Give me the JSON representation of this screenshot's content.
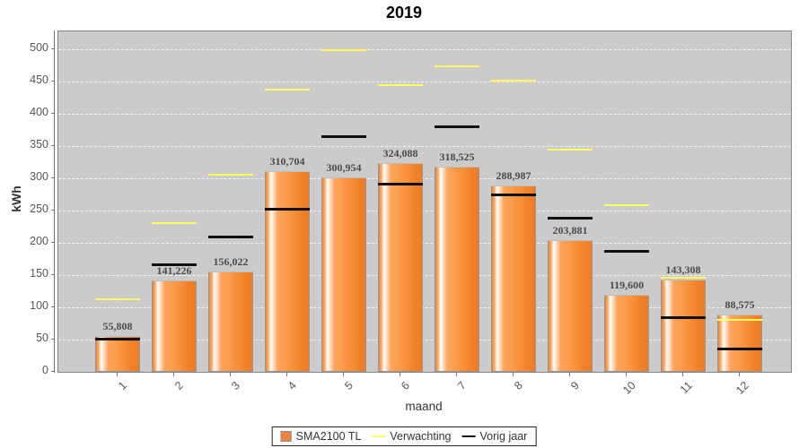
{
  "title": "2019",
  "axes": {
    "y_label": "kWh",
    "x_label": "maand",
    "y_ticks": [
      0,
      50,
      100,
      150,
      200,
      250,
      300,
      350,
      400,
      450,
      500
    ],
    "x_ticks": [
      "1",
      "2",
      "3",
      "4",
      "5",
      "6",
      "7",
      "8",
      "9",
      "10",
      "11",
      "12"
    ]
  },
  "legend": {
    "items": [
      {
        "label": "SMA2100 TL",
        "swatch": "bar-swatch",
        "color": "#f08443"
      },
      {
        "label": "Verwachting",
        "swatch": "line-swatch",
        "color": "#ffff5e"
      },
      {
        "label": "Vorig jaar",
        "swatch": "line-swatch",
        "color": "#111111"
      }
    ]
  },
  "chart_data": {
    "type": "bar",
    "title": "2019",
    "xlabel": "maand",
    "ylabel": "kWh",
    "ylim": [
      0,
      500
    ],
    "grid": "horizontal-dashed-white",
    "legend_position": "bottom",
    "plot_background": "#cbcbcb",
    "categories": [
      "1",
      "2",
      "3",
      "4",
      "5",
      "6",
      "7",
      "8",
      "9",
      "10",
      "11",
      "12"
    ],
    "series": [
      {
        "name": "SMA2100 TL",
        "style": "bar",
        "color": "#f08443",
        "values": [
          55.808,
          141.226,
          156.022,
          310.704,
          300.954,
          324.088,
          318.525,
          288.987,
          203.881,
          119.6,
          143.308,
          88.575
        ],
        "labels": [
          "55,808",
          "141,226",
          "156,022",
          "310,704",
          "300,954",
          "324,088",
          "318,525",
          "288,987",
          "203,881",
          "119,600",
          "143,308",
          "88,575"
        ]
      },
      {
        "name": "Verwachting",
        "style": "horizontal-dash-marker",
        "color": "#ffff5e",
        "values": [
          112,
          230,
          306,
          437,
          499,
          445,
          474,
          451,
          345,
          258,
          146,
          81
        ]
      },
      {
        "name": "Vorig jaar",
        "style": "horizontal-dash-marker",
        "color": "#111111",
        "values": [
          51,
          167,
          210,
          253,
          365,
          292,
          380,
          275,
          239,
          188,
          85,
          36
        ]
      }
    ]
  }
}
